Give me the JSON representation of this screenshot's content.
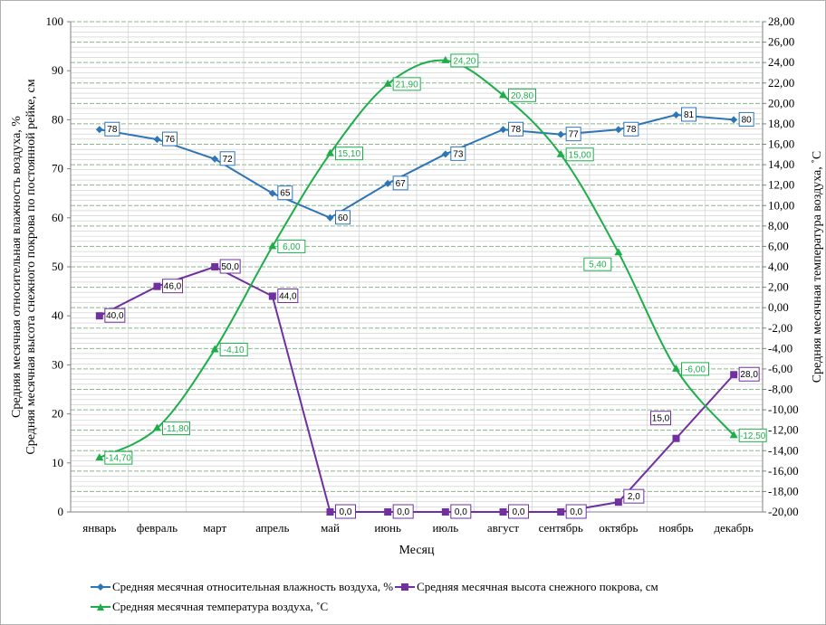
{
  "colors": {
    "humidity": "#2E75B6",
    "snow": "#7030A0",
    "temperature": "#1DAE4B"
  },
  "chart_data": {
    "type": "line",
    "categories": [
      "январь",
      "февраль",
      "март",
      "апрель",
      "май",
      "июнь",
      "июль",
      "август",
      "сентябрь",
      "октябрь",
      "ноябрь",
      "декабрь"
    ],
    "xlabel": "Месяц",
    "ylabel_left_line1": "Средняя  месячная  относительная влажность воздуха, %",
    "ylabel_left_line2": "Средняя месячная высота снежного покрова по постоянной рейке, см",
    "ylabel_right": "Средняя месячная температура воздуха, ˚С",
    "ylim_left": [
      0,
      100
    ],
    "yticks_left": [
      "0",
      "10",
      "20",
      "30",
      "40",
      "50",
      "60",
      "70",
      "80",
      "90",
      "100"
    ],
    "ylim_right": [
      -20,
      28
    ],
    "yticks_right": [
      "-20,00",
      "-18,00",
      "-16,00",
      "-14,00",
      "-12,00",
      "-10,00",
      "-8,00",
      "-6,00",
      "-4,00",
      "-2,00",
      "0,00",
      "2,00",
      "4,00",
      "6,00",
      "8,00",
      "10,00",
      "12,00",
      "14,00",
      "16,00",
      "18,00",
      "20,00",
      "22,00",
      "24,00",
      "26,00",
      "28,00"
    ],
    "grid": true,
    "legend_position": "bottom",
    "series": [
      {
        "name": "Средняя  месячная  относительная влажность воздуха, %",
        "axis": "left",
        "values": [
          78,
          76,
          72,
          65,
          60,
          67,
          73,
          78,
          77,
          78,
          81,
          80
        ],
        "labels": [
          "78",
          "76",
          "72",
          "65",
          "60",
          "67",
          "73",
          "78",
          "77",
          "78",
          "81",
          "80"
        ]
      },
      {
        "name": "Средняя месячная высота снежного покрова, см",
        "axis": "left",
        "values": [
          40.0,
          46.0,
          50.0,
          44.0,
          0.0,
          0.0,
          0.0,
          0.0,
          0.0,
          2.0,
          15.0,
          28.0
        ],
        "labels": [
          "40,0",
          "46,0",
          "50,0",
          "44,0",
          "0,0",
          "0,0",
          "0,0",
          "0,0",
          "0,0",
          "2,0",
          "15,0",
          "28,0"
        ]
      },
      {
        "name": "Средняя месячная температура воздуха, ˚С",
        "axis": "right",
        "values": [
          -14.7,
          -11.8,
          -4.1,
          6.0,
          15.1,
          21.9,
          24.2,
          20.8,
          15.0,
          5.4,
          -6.0,
          -12.5
        ],
        "labels": [
          "-14,70",
          "-11,80",
          "-4,10",
          "6,00",
          "15,10",
          "21,90",
          "24,20",
          "20,80",
          "15,00",
          "5,40",
          "-6,00",
          "-12,50"
        ]
      }
    ]
  }
}
